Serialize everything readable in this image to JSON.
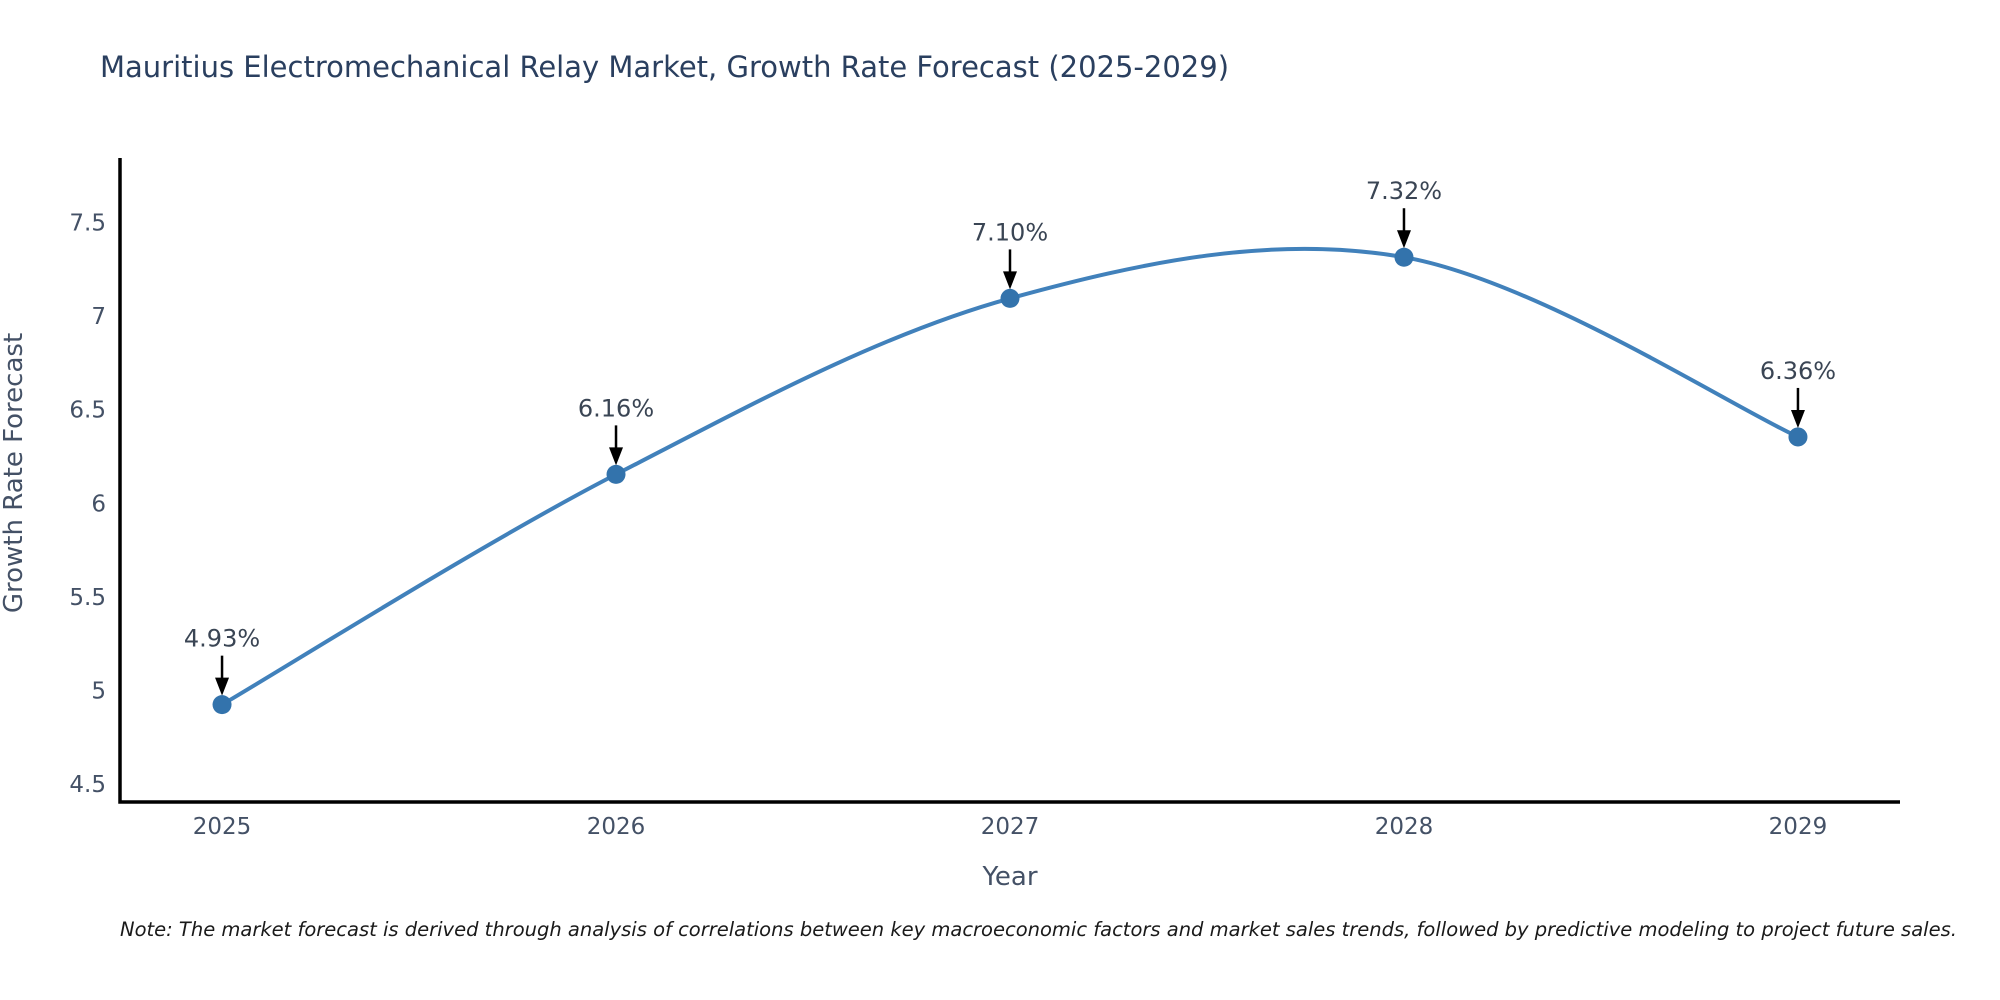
{
  "title": "Mauritius Electromechanical Relay Market, Growth Rate Forecast (2025-2029)",
  "note": "Note: The market forecast is derived through analysis of correlations between key macroeconomic factors and market sales trends, followed by predictive modeling to project future sales.",
  "chart_data": {
    "type": "line",
    "title": "Mauritius Electromechanical Relay Market, Growth Rate Forecast (2025-2029)",
    "xlabel": "Year",
    "ylabel": "Growth Rate Forecast",
    "categories": [
      "2025",
      "2026",
      "2027",
      "2028",
      "2029"
    ],
    "values": [
      4.93,
      6.16,
      7.1,
      7.32,
      6.36
    ],
    "point_labels": [
      "4.93%",
      "6.16%",
      "7.10%",
      "7.32%",
      "6.36%"
    ],
    "ytick_labels": [
      "4.5",
      "5",
      "5.5",
      "6",
      "6.5",
      "7",
      "7.5"
    ],
    "ytick_values": [
      4.5,
      5,
      5.5,
      6,
      6.5,
      7,
      7.5
    ],
    "ylim": [
      4.41,
      7.85
    ],
    "grid": false,
    "legend": "none",
    "line_shape": "spline",
    "colors": {
      "line": "#4181bb",
      "marker": "#3373ac",
      "arrow": "#000000",
      "axis": "#000000",
      "tick_text": "#445166",
      "title_text": "#2a3f5f",
      "annotation_text": "#3a4554"
    }
  }
}
